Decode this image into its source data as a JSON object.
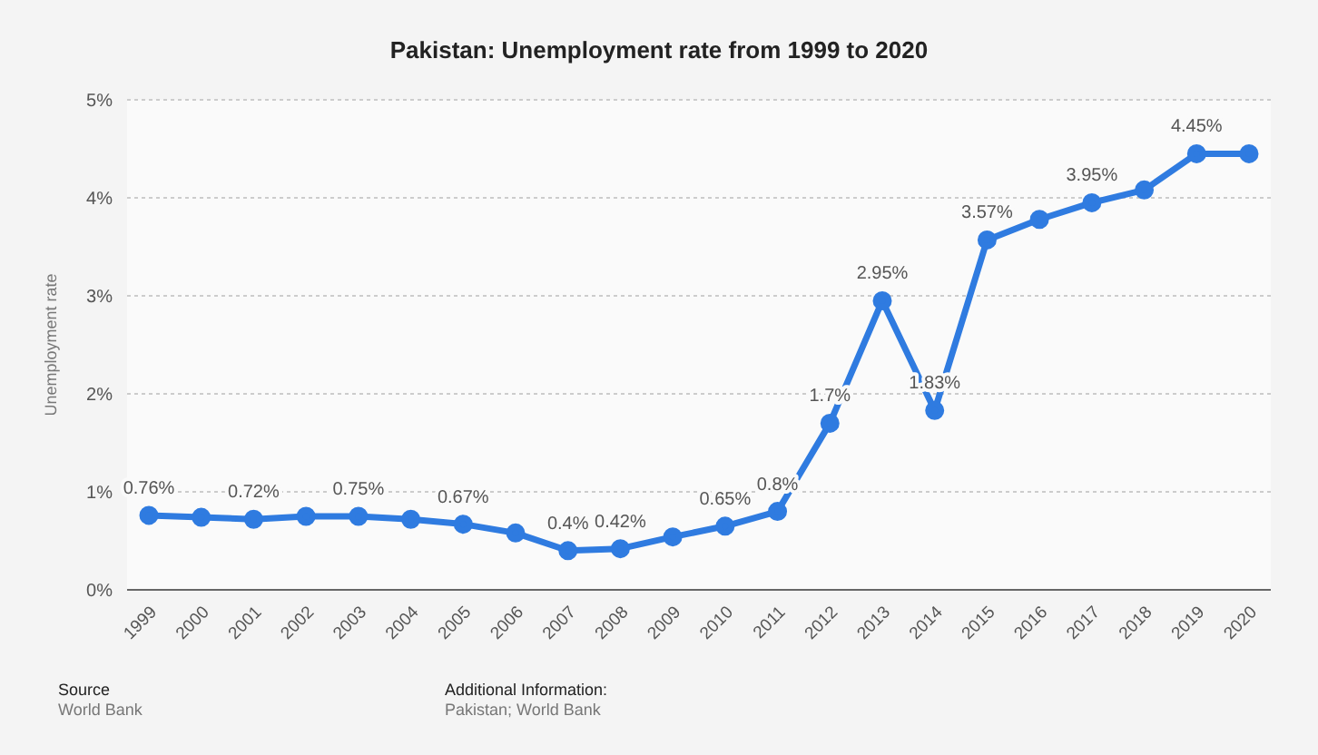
{
  "chart_data": {
    "type": "line",
    "title": "Pakistan: Unemployment rate from 1999 to 2020",
    "ylabel": "Unemployment rate",
    "categories": [
      "1999",
      "2000",
      "2001",
      "2002",
      "2003",
      "2004",
      "2005",
      "2006",
      "2007",
      "2008",
      "2009",
      "2010",
      "2011",
      "2012",
      "2013",
      "2014",
      "2015",
      "2016",
      "2017",
      "2018",
      "2019",
      "2020"
    ],
    "series": [
      {
        "color": "#2f7be0",
        "values": [
          0.76,
          0.74,
          0.72,
          0.75,
          0.75,
          0.72,
          0.67,
          0.58,
          0.4,
          0.42,
          0.54,
          0.65,
          0.8,
          1.7,
          2.95,
          1.83,
          3.57,
          3.78,
          3.95,
          4.08,
          4.45,
          4.45
        ],
        "value_labels": [
          "0.76%",
          null,
          "0.72%",
          null,
          "0.75%",
          null,
          "0.67%",
          null,
          "0.4%",
          "0.42%",
          null,
          "0.65%",
          "0.8%",
          "1.7%",
          "2.95%",
          "1.83%",
          "3.57%",
          null,
          "3.95%",
          null,
          "4.45%",
          null
        ]
      }
    ],
    "ylim": [
      0,
      5
    ],
    "yticks": [
      {
        "value": 0,
        "label": "0%"
      },
      {
        "value": 1,
        "label": "1%"
      },
      {
        "value": 2,
        "label": "2%"
      },
      {
        "value": 3,
        "label": "3%"
      },
      {
        "value": 4,
        "label": "4%"
      },
      {
        "value": 5,
        "label": "5%"
      }
    ],
    "grid": "y",
    "marker": "circle",
    "line_style": "solid",
    "legend": false,
    "annotations": [
      "Source",
      "World Bank",
      "Additional Information:",
      "Pakistan; World Bank"
    ]
  }
}
